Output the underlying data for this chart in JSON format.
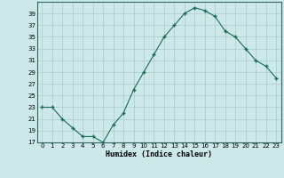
{
  "x": [
    0,
    1,
    2,
    3,
    4,
    5,
    6,
    7,
    8,
    9,
    10,
    11,
    12,
    13,
    14,
    15,
    16,
    17,
    18,
    19,
    20,
    21,
    22,
    23
  ],
  "y": [
    23,
    23,
    21,
    19.5,
    18,
    18,
    17,
    20,
    22,
    26,
    29,
    32,
    35,
    37,
    39,
    40,
    39.5,
    38.5,
    36,
    35,
    33,
    31,
    30,
    28
  ],
  "line_color": "#1a6b5a",
  "marker": "+",
  "marker_size": 3,
  "marker_lw": 1.0,
  "line_width": 0.8,
  "bg_color": "#cce8e8",
  "grid_color": "#aacccc",
  "xlabel": "Humidex (Indice chaleur)",
  "ylim": [
    17,
    41
  ],
  "xlim": [
    -0.5,
    23.5
  ],
  "yticks": [
    17,
    19,
    21,
    23,
    25,
    27,
    29,
    31,
    33,
    35,
    37,
    39
  ],
  "xticks": [
    0,
    1,
    2,
    3,
    4,
    5,
    6,
    7,
    8,
    9,
    10,
    11,
    12,
    13,
    14,
    15,
    16,
    17,
    18,
    19,
    20,
    21,
    22,
    23
  ],
  "tick_fontsize": 5.0,
  "xlabel_fontsize": 6.0,
  "spine_color": "#336666"
}
